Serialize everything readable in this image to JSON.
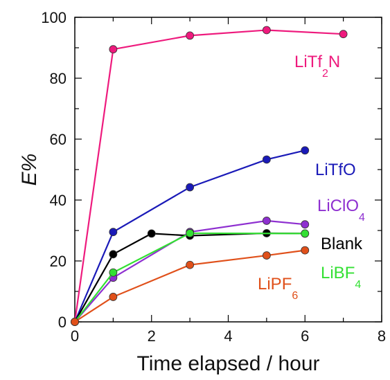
{
  "chart_data": {
    "type": "line",
    "title": "",
    "xlabel": "Time elapsed / hour",
    "ylabel": "E%",
    "xlim": [
      0,
      8
    ],
    "ylim": [
      0,
      100
    ],
    "xticks": [
      "0",
      "2",
      "4",
      "6",
      "8"
    ],
    "yticks": [
      "0",
      "20",
      "40",
      "60",
      "80",
      "100"
    ],
    "grid": false,
    "series": [
      {
        "name": "LiTf2N",
        "label_main": "LiTf",
        "label_parts": [
          "LiTf",
          "2",
          "N"
        ],
        "color": "#ee1a7d",
        "x": [
          0,
          1,
          3,
          5,
          7
        ],
        "y": [
          0,
          89.5,
          94,
          95.8,
          94.5
        ]
      },
      {
        "name": "LiTfO",
        "label_parts": [
          "LiTfO"
        ],
        "color": "#1a1ab8",
        "x": [
          0,
          1,
          3,
          5,
          6
        ],
        "y": [
          0,
          29.5,
          44.2,
          53.3,
          56.3
        ]
      },
      {
        "name": "LiClO4",
        "label_parts": [
          "LiClO",
          "4"
        ],
        "color": "#8e2fd0",
        "x": [
          0,
          1,
          3,
          5,
          6
        ],
        "y": [
          0,
          14.5,
          29.5,
          33.2,
          32
        ]
      },
      {
        "name": "Blank",
        "label_parts": [
          "Blank"
        ],
        "color": "#000000",
        "x": [
          0,
          1,
          2,
          3,
          5,
          6
        ],
        "y": [
          0,
          22.2,
          29,
          28.3,
          29.1,
          29
        ]
      },
      {
        "name": "LiBF4",
        "label_parts": [
          "LiBF",
          "4"
        ],
        "color": "#33e033",
        "x": [
          0,
          1,
          3,
          6
        ],
        "y": [
          0,
          16.2,
          29.1,
          29
        ]
      },
      {
        "name": "LiPF6",
        "label_parts": [
          "LiPF",
          "6"
        ],
        "color": "#e0501a",
        "x": [
          0,
          1,
          3,
          5,
          6
        ],
        "y": [
          0,
          8.2,
          18.7,
          21.8,
          23.5
        ]
      }
    ]
  }
}
